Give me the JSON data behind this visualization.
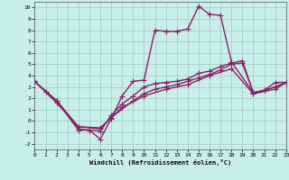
{
  "xlabel": "Windchill (Refroidissement éolien,°C)",
  "xlim": [
    0,
    23
  ],
  "ylim": [
    -2.5,
    10.5
  ],
  "xticks": [
    0,
    1,
    2,
    3,
    4,
    5,
    6,
    7,
    8,
    9,
    10,
    11,
    12,
    13,
    14,
    15,
    16,
    17,
    18,
    19,
    20,
    21,
    22,
    23
  ],
  "yticks": [
    -2,
    -1,
    0,
    1,
    2,
    3,
    4,
    5,
    6,
    7,
    8,
    9,
    10
  ],
  "bg_color": "#c8eee8",
  "grid_color": "#a0c8c0",
  "line_color": "#882266",
  "line_width": 1.0,
  "marker": "+",
  "marker_size": 4,
  "marker_edge_width": 0.8,
  "lines": [
    {
      "x": [
        0,
        1,
        2,
        4,
        5,
        6,
        7,
        8,
        9,
        10,
        11,
        12,
        13,
        14,
        15,
        16,
        17,
        18,
        20,
        21,
        22,
        23
      ],
      "y": [
        3.5,
        2.6,
        1.8,
        -0.8,
        -0.8,
        -1.6,
        0.2,
        2.2,
        3.5,
        3.6,
        8.0,
        7.9,
        7.9,
        8.1,
        10.1,
        9.4,
        9.3,
        5.2,
        2.5,
        2.7,
        3.4,
        3.4
      ]
    },
    {
      "x": [
        0,
        1,
        2,
        4,
        5,
        6,
        7,
        8,
        9,
        10,
        11,
        12,
        13,
        14,
        15,
        16,
        17,
        18,
        19,
        20,
        21,
        22,
        23
      ],
      "y": [
        3.5,
        2.6,
        1.8,
        -0.7,
        -0.8,
        -0.9,
        0.5,
        1.5,
        2.2,
        3.0,
        3.3,
        3.4,
        3.5,
        3.7,
        4.2,
        4.4,
        4.8,
        5.1,
        5.3,
        2.5,
        2.7,
        3.0,
        3.4
      ]
    },
    {
      "x": [
        0,
        2,
        4,
        6,
        7,
        9,
        10,
        11,
        12,
        13,
        14,
        15,
        16,
        17,
        18,
        19,
        20,
        21,
        22,
        23
      ],
      "y": [
        3.5,
        1.8,
        -0.5,
        -0.7,
        0.3,
        1.8,
        2.4,
        2.8,
        3.0,
        3.2,
        3.5,
        3.8,
        4.1,
        4.5,
        5.0,
        5.1,
        2.5,
        2.7,
        3.0,
        3.4
      ]
    },
    {
      "x": [
        0,
        2,
        4,
        6,
        8,
        10,
        12,
        14,
        16,
        18,
        20,
        22,
        23
      ],
      "y": [
        3.5,
        1.6,
        -0.5,
        -0.6,
        1.2,
        2.2,
        2.8,
        3.2,
        4.0,
        4.6,
        2.4,
        2.8,
        3.4
      ]
    }
  ]
}
